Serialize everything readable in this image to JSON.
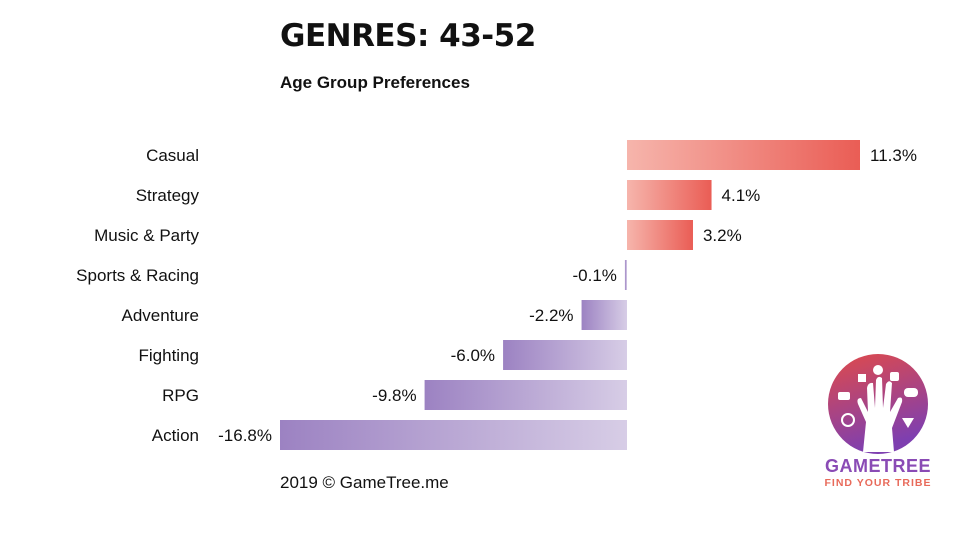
{
  "chart_data": {
    "type": "bar",
    "orientation": "horizontal",
    "title": "GENRES: 43-52",
    "subtitle": "Age Group Preferences",
    "categories": [
      "Casual",
      "Strategy",
      "Music & Party",
      "Sports & Racing",
      "Adventure",
      "Fighting",
      "RPG",
      "Action"
    ],
    "values": [
      11.3,
      4.1,
      3.2,
      -0.1,
      -2.2,
      -6.0,
      -9.8,
      -16.8
    ],
    "value_labels": [
      "11.3%",
      "4.1%",
      "3.2%",
      "-0.1%",
      "-2.2%",
      "-6.0%",
      "-9.8%",
      "-16.8%"
    ],
    "unit": "%",
    "xlim": [
      -16.8,
      11.3
    ],
    "grid": false,
    "legend": "none",
    "colors": {
      "positive_start": "#f6b5ac",
      "positive_end": "#ea5d55",
      "negative_start": "#9c82c2",
      "negative_end": "#d7cde6"
    }
  },
  "footer": "2019 © GameTree.me",
  "logo": {
    "name": "GAMETREE",
    "tagline": "FIND YOUR TRIBE",
    "colors": {
      "gradient_top": "#e04a4a",
      "gradient_bottom": "#7e3fb0",
      "name_color": "#8a4bb5",
      "tagline_color": "#e86a5a"
    }
  }
}
